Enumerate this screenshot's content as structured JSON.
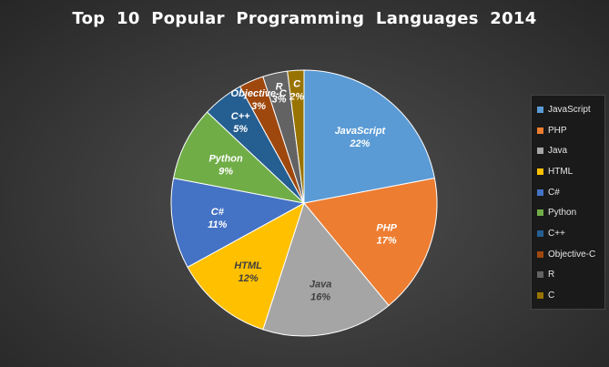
{
  "chart_data": {
    "type": "pie",
    "title": "Top 10 Popular Programming Languages 2014",
    "categories": [
      "JavaScript",
      "PHP",
      "Java",
      "HTML",
      "C#",
      "Python",
      "C++",
      "Objective-C",
      "R",
      "C"
    ],
    "values": [
      22,
      17,
      16,
      12,
      11,
      9,
      5,
      3,
      3,
      2
    ],
    "value_labels": [
      "22%",
      "17%",
      "16%",
      "12%",
      "11%",
      "9%",
      "5%",
      "3%",
      "3%",
      "2%"
    ],
    "colors": [
      "#5b9bd5",
      "#ed7d31",
      "#a5a5a5",
      "#ffc000",
      "#4472c4",
      "#70ad47",
      "#255e91",
      "#9e480e",
      "#636363",
      "#997300"
    ],
    "legend_position": "right",
    "data_labels_inside": true
  }
}
